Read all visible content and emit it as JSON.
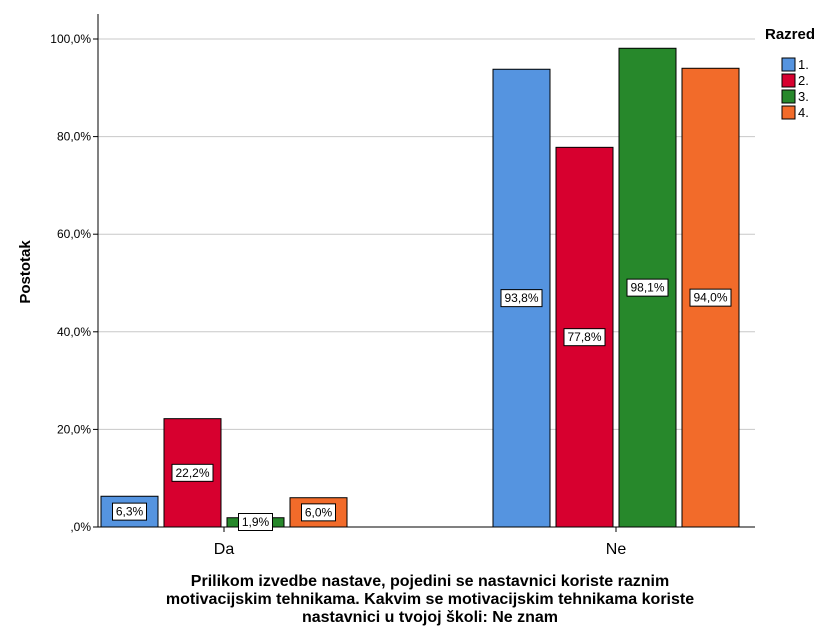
{
  "chart_data": {
    "type": "bar",
    "categories": [
      "Da",
      "Ne"
    ],
    "series": [
      {
        "name": "1.",
        "values": [
          6.3,
          93.8
        ],
        "labels": [
          "6,3%",
          "93,8%"
        ],
        "color": "#5594e0"
      },
      {
        "name": "2.",
        "values": [
          22.2,
          77.8
        ],
        "labels": [
          "22,2%",
          "77,8%"
        ],
        "color": "#d7002f"
      },
      {
        "name": "3.",
        "values": [
          1.9,
          98.1
        ],
        "labels": [
          "1,9%",
          "98,1%"
        ],
        "color": "#27882b"
      },
      {
        "name": "4.",
        "values": [
          6.0,
          94.0
        ],
        "labels": [
          "6,0%",
          "94,0%"
        ],
        "color": "#f26b2a"
      }
    ],
    "ylabel": "Postotak",
    "xlabel_lines": [
      "Prilikom izvedbe nastave, pojedini se nastavnici koriste raznim",
      "motivacijskim tehnikama. Kakvim se motivacijskim tehnikama koriste",
      "nastavnici u tvojoj školi: Ne znam"
    ],
    "ylim": [
      0,
      100
    ],
    "yticks": [
      0,
      20,
      40,
      60,
      80,
      100
    ],
    "ytick_labels": [
      ",0%",
      "20,0%",
      "40,0%",
      "60,0%",
      "80,0%",
      "100,0%"
    ],
    "legend_title": "Razred",
    "legend_position": "top-right",
    "grid": true
  }
}
